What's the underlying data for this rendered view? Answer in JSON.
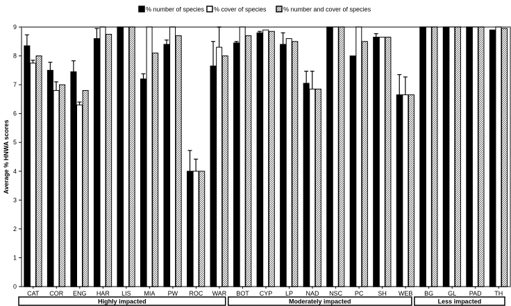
{
  "chart_data": {
    "type": "bar",
    "title": "",
    "ylabel": "Average % HNWA scores",
    "xlabel": "",
    "ylim": [
      0,
      9
    ],
    "yticks": [
      0,
      1,
      2,
      3,
      4,
      5,
      6,
      7,
      8,
      9
    ],
    "grid": false,
    "legend_position": "top-center",
    "categories": [
      "CAT",
      "COR",
      "ENG",
      "HAR",
      "LIS",
      "MIA",
      "PW",
      "ROC",
      "WAR",
      "BOT",
      "CYP",
      "LP",
      "NAD",
      "NSC",
      "PC",
      "SH",
      "WEB",
      "BG",
      "GL",
      "PAD",
      "TH"
    ],
    "series": [
      {
        "name": "% number of species",
        "fill": "solid",
        "values": [
          8.35,
          7.5,
          7.45,
          8.6,
          9.0,
          7.2,
          8.4,
          4.0,
          7.65,
          8.45,
          8.8,
          8.4,
          7.05,
          9.0,
          8.0,
          8.65,
          6.65,
          9.0,
          9.0,
          9.0,
          8.9
        ],
        "errors": [
          0.38,
          0.28,
          0.38,
          0.35,
          0.0,
          0.18,
          0.15,
          0.72,
          0.85,
          0.05,
          0.05,
          0.4,
          0.42,
          0.0,
          0.0,
          0.12,
          0.7,
          0.0,
          0.0,
          0.0,
          0.0
        ]
      },
      {
        "name": "% cover of species",
        "fill": "open",
        "values": [
          7.75,
          6.8,
          6.3,
          9.0,
          9.0,
          9.0,
          9.0,
          4.0,
          8.3,
          9.0,
          8.9,
          8.6,
          6.85,
          9.0,
          9.0,
          8.65,
          6.65,
          9.0,
          9.0,
          9.0,
          9.0
        ],
        "errors": [
          0.1,
          0.3,
          0.1,
          0.05,
          0.0,
          0.0,
          0.05,
          0.42,
          0.7,
          0.0,
          0.0,
          0.0,
          0.62,
          0.0,
          0.0,
          0.0,
          0.62,
          0.0,
          0.0,
          0.0,
          0.0
        ]
      },
      {
        "name": "% number and cover of species",
        "fill": "hatched",
        "values": [
          8.0,
          7.0,
          6.8,
          8.75,
          9.0,
          8.1,
          8.7,
          4.0,
          8.0,
          8.7,
          8.85,
          8.5,
          6.85,
          9.0,
          8.5,
          8.65,
          6.65,
          9.0,
          9.0,
          9.0,
          8.95
        ],
        "errors": [
          0,
          0,
          0,
          0,
          0,
          0,
          0,
          0,
          0,
          0,
          0,
          0,
          0,
          0,
          0,
          0,
          0,
          0,
          0,
          0,
          0
        ]
      }
    ],
    "groups": [
      {
        "label": "Highly impacted",
        "from": 0,
        "to": 8
      },
      {
        "label": "Moderately impacted",
        "from": 9,
        "to": 16
      },
      {
        "label": "Less impacted",
        "from": 17,
        "to": 20
      }
    ]
  }
}
